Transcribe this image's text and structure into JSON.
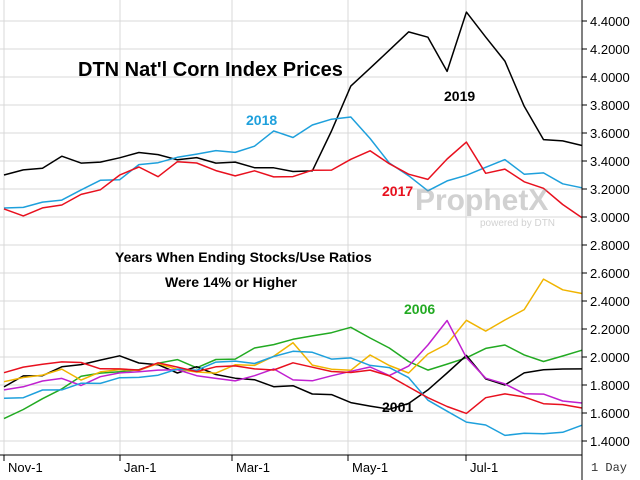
{
  "chart_data": {
    "type": "line",
    "title": "DTN Nat'l Corn Index Prices",
    "subtitle_lines": [
      "Years When Ending Stocks/Use Ratios",
      "Were 14% or Higher"
    ],
    "x_ticks": [
      "Nov-1",
      "Jan-1",
      "Mar-1",
      "May-1",
      "Jul-1"
    ],
    "y_ticks": [
      "4.4000",
      "4.2000",
      "4.0000",
      "3.8000",
      "3.6000",
      "3.4000",
      "3.2000",
      "3.0000",
      "2.8000",
      "2.6000",
      "2.4000",
      "2.2000",
      "2.0000",
      "1.8000",
      "1.6000",
      "1.4000"
    ],
    "ylim": [
      1.3,
      4.55
    ],
    "x_axis": "Nov-1 to late Aug, 1-day bars",
    "interval_label": "1 Day",
    "grid": true,
    "watermark": {
      "brand": "ProphetX",
      "powered": "powered by DTN"
    },
    "labels": {
      "y2019": "2019",
      "y2018": "2018",
      "y2017": "2017",
      "y2006": "2006",
      "y2001": "2001"
    },
    "series": [
      {
        "name": "2019",
        "color": "#000000",
        "x": [
          0,
          10,
          20,
          30,
          40,
          50,
          60,
          70,
          80,
          90,
          100,
          110,
          120,
          130,
          140,
          150,
          160,
          170,
          180,
          190,
          200,
          210,
          220,
          230,
          240,
          250,
          260,
          270,
          280,
          290,
          300
        ],
        "y": [
          3.3,
          3.33,
          3.36,
          3.42,
          3.4,
          3.38,
          3.43,
          3.46,
          3.44,
          3.42,
          3.41,
          3.4,
          3.38,
          3.36,
          3.35,
          3.32,
          3.34,
          3.6,
          3.95,
          4.05,
          4.2,
          4.32,
          4.28,
          4.05,
          4.45,
          4.3,
          4.1,
          3.8,
          3.55,
          3.54,
          3.52
        ]
      },
      {
        "name": "2018",
        "color": "#1ea0dc",
        "x": [
          0,
          10,
          20,
          30,
          40,
          50,
          60,
          70,
          80,
          90,
          100,
          110,
          120,
          130,
          140,
          150,
          160,
          170,
          180,
          190,
          200,
          210,
          220,
          230,
          240,
          250,
          260,
          270,
          280,
          290,
          300
        ],
        "y": [
          3.05,
          3.08,
          3.1,
          3.12,
          3.2,
          3.25,
          3.28,
          3.36,
          3.4,
          3.42,
          3.45,
          3.48,
          3.45,
          3.52,
          3.6,
          3.58,
          3.65,
          3.7,
          3.72,
          3.55,
          3.4,
          3.28,
          3.2,
          3.25,
          3.3,
          3.36,
          3.4,
          3.32,
          3.3,
          3.25,
          3.2
        ]
      },
      {
        "name": "2017",
        "color": "#e8101e",
        "x": [
          0,
          10,
          20,
          30,
          40,
          50,
          60,
          70,
          80,
          90,
          100,
          110,
          120,
          130,
          140,
          150,
          160,
          170,
          180,
          190,
          200,
          210,
          220,
          230,
          240,
          250,
          260,
          270,
          280,
          290,
          300
        ],
        "y": [
          3.05,
          3.02,
          3.05,
          3.1,
          3.15,
          3.2,
          3.3,
          3.35,
          3.3,
          3.38,
          3.4,
          3.32,
          3.3,
          3.33,
          3.28,
          3.3,
          3.32,
          3.35,
          3.4,
          3.48,
          3.38,
          3.3,
          3.28,
          3.4,
          3.55,
          3.3,
          3.35,
          3.25,
          3.2,
          3.1,
          2.98
        ]
      },
      {
        "name": "2006",
        "color": "#22aa22",
        "x": [
          0,
          10,
          20,
          30,
          40,
          50,
          60,
          70,
          80,
          90,
          100,
          110,
          120,
          130,
          140,
          150,
          160,
          170,
          180,
          190,
          200,
          210,
          220,
          230,
          240,
          250,
          260,
          270,
          280,
          290,
          300
        ],
        "y": [
          1.57,
          1.62,
          1.7,
          1.78,
          1.85,
          1.9,
          1.88,
          1.92,
          1.95,
          1.98,
          1.93,
          1.97,
          2.0,
          2.05,
          2.1,
          2.12,
          2.15,
          2.18,
          2.2,
          2.15,
          2.05,
          1.98,
          1.9,
          1.95,
          2.0,
          2.05,
          2.1,
          2.0,
          1.98,
          2.0,
          2.05
        ]
      },
      {
        "name": "2001",
        "color": "#000000",
        "x": [
          0,
          10,
          20,
          30,
          40,
          50,
          60,
          70,
          80,
          90,
          100,
          110,
          120,
          130,
          140,
          150,
          160,
          170,
          180,
          190,
          200,
          210,
          220,
          230,
          240,
          250,
          260,
          270,
          280,
          290,
          300
        ],
        "y": [
          1.8,
          1.85,
          1.88,
          1.92,
          1.95,
          1.98,
          2.0,
          1.97,
          1.93,
          1.9,
          1.92,
          1.88,
          1.85,
          1.83,
          1.8,
          1.78,
          1.75,
          1.72,
          1.68,
          1.65,
          1.62,
          1.68,
          1.75,
          1.9,
          2.0,
          1.85,
          1.8,
          1.88,
          1.92,
          1.9,
          1.93
        ]
      },
      {
        "name": "",
        "color": "#f0b400",
        "x": [
          0,
          10,
          20,
          30,
          40,
          50,
          60,
          70,
          80,
          90,
          100,
          110,
          120,
          130,
          140,
          150,
          160,
          170,
          180,
          190,
          200,
          210,
          220,
          230,
          240,
          250,
          260,
          270,
          280,
          290,
          300
        ],
        "y": [
          1.82,
          1.85,
          1.88,
          1.9,
          1.85,
          1.88,
          1.92,
          1.9,
          1.95,
          1.92,
          1.88,
          1.9,
          1.93,
          1.95,
          2.0,
          2.1,
          1.95,
          1.9,
          1.92,
          2.0,
          1.95,
          1.88,
          2.02,
          2.1,
          2.25,
          2.2,
          2.25,
          2.35,
          2.55,
          2.48,
          2.46
        ]
      },
      {
        "name": "",
        "color": "#c020d0",
        "x": [
          0,
          10,
          20,
          30,
          40,
          50,
          60,
          70,
          80,
          90,
          100,
          110,
          120,
          130,
          140,
          150,
          160,
          170,
          180,
          190,
          200,
          210,
          220,
          230,
          240,
          250,
          260,
          270,
          280,
          290,
          300
        ],
        "y": [
          1.75,
          1.8,
          1.82,
          1.85,
          1.8,
          1.85,
          1.9,
          1.88,
          1.92,
          1.9,
          1.87,
          1.85,
          1.82,
          1.88,
          1.9,
          1.85,
          1.82,
          1.87,
          1.9,
          1.92,
          1.88,
          1.92,
          2.1,
          2.25,
          2.0,
          1.85,
          1.8,
          1.75,
          1.72,
          1.7,
          1.66
        ]
      },
      {
        "name": "",
        "color": "#1ea0dc",
        "x": [
          0,
          10,
          20,
          30,
          40,
          50,
          60,
          70,
          80,
          90,
          100,
          110,
          120,
          130,
          140,
          150,
          160,
          170,
          180,
          190,
          200,
          210,
          220,
          230,
          240,
          250,
          260,
          270,
          280,
          290,
          300
        ],
        "y": [
          1.7,
          1.72,
          1.75,
          1.78,
          1.8,
          1.82,
          1.85,
          1.85,
          1.88,
          1.9,
          1.92,
          1.95,
          1.98,
          1.95,
          2.0,
          2.05,
          2.02,
          2.0,
          1.98,
          1.95,
          1.92,
          1.85,
          1.7,
          1.6,
          1.55,
          1.5,
          1.45,
          1.45,
          1.45,
          1.47,
          1.5
        ]
      },
      {
        "name": "",
        "color": "#e8101e",
        "x": [
          0,
          10,
          20,
          30,
          40,
          50,
          60,
          70,
          80,
          90,
          100,
          110,
          120,
          130,
          140,
          150,
          160,
          170,
          180,
          190,
          200,
          210,
          220,
          230,
          240,
          250,
          260,
          270,
          280,
          290,
          300
        ],
        "y": [
          1.9,
          1.92,
          1.95,
          1.97,
          1.95,
          1.93,
          1.9,
          1.92,
          1.95,
          1.93,
          1.9,
          1.92,
          1.95,
          1.9,
          1.92,
          1.95,
          1.93,
          1.9,
          1.88,
          1.92,
          1.85,
          1.8,
          1.7,
          1.65,
          1.6,
          1.7,
          1.75,
          1.7,
          1.68,
          1.65,
          1.64
        ]
      }
    ]
  }
}
